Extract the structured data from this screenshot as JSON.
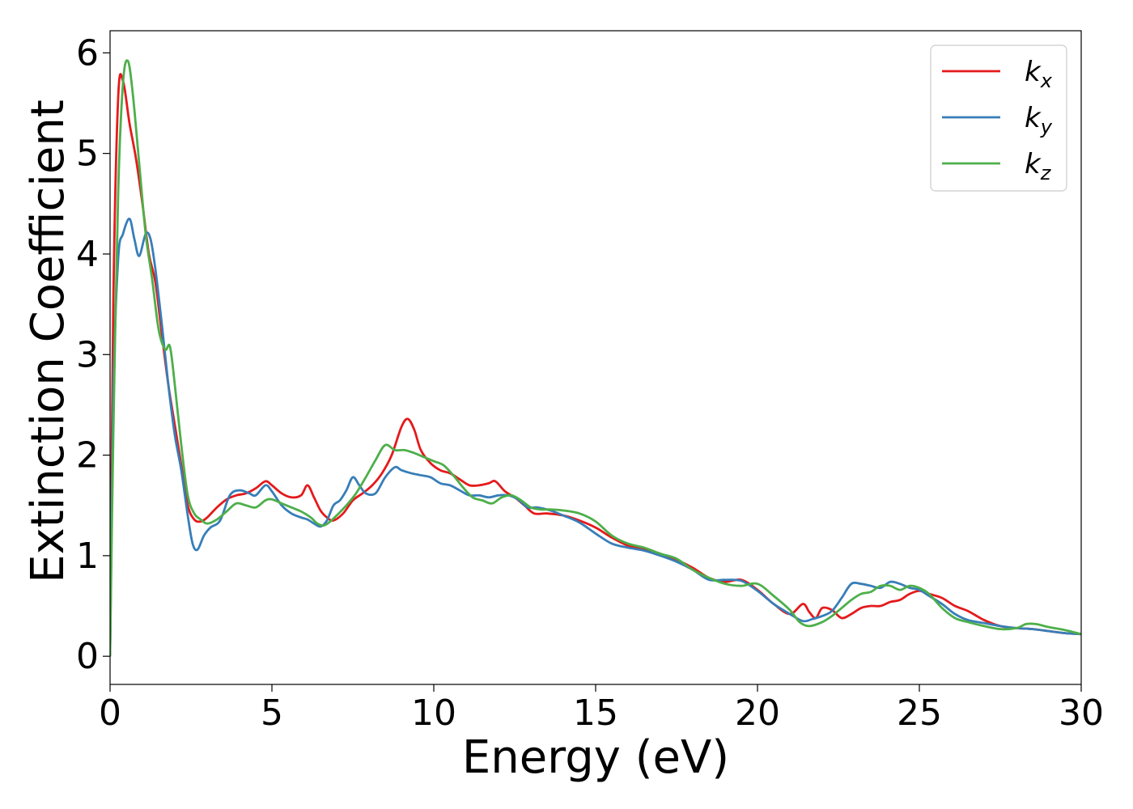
{
  "chart_data": {
    "type": "line",
    "title": "",
    "xlabel": "Energy (eV)",
    "ylabel": "Extinction Coefficient",
    "xlim": [
      0,
      30
    ],
    "ylim": [
      -0.28,
      6.22
    ],
    "xticks": [
      0,
      5,
      10,
      15,
      20,
      25,
      30
    ],
    "yticks": [
      0,
      1,
      2,
      3,
      4,
      5,
      6
    ],
    "grid": false,
    "legend_position": "top-right",
    "series": [
      {
        "name": "k",
        "subscript": "x",
        "color": "#e41a1c",
        "x": [
          0,
          0.1,
          0.25,
          0.4,
          0.6,
          0.8,
          1.0,
          1.2,
          1.4,
          1.6,
          1.8,
          2.0,
          2.2,
          2.4,
          2.6,
          2.8,
          3.0,
          3.3,
          3.6,
          3.9,
          4.2,
          4.5,
          4.8,
          5.0,
          5.3,
          5.6,
          5.9,
          6.1,
          6.3,
          6.5,
          6.7,
          6.9,
          7.2,
          7.5,
          7.8,
          8.1,
          8.4,
          8.7,
          9.0,
          9.2,
          9.4,
          9.6,
          9.9,
          10.2,
          10.5,
          10.8,
          11.1,
          11.4,
          11.7,
          11.9,
          12.2,
          12.5,
          12.8,
          13.1,
          13.5,
          14.0,
          14.5,
          15.0,
          15.5,
          16.0,
          16.5,
          17.0,
          17.5,
          18.0,
          18.5,
          19.0,
          19.5,
          20.0,
          20.5,
          21.0,
          21.4,
          21.6,
          21.8,
          22.0,
          22.3,
          22.6,
          22.9,
          23.2,
          23.5,
          23.8,
          24.1,
          24.4,
          24.7,
          25.0,
          25.3,
          25.7,
          26.1,
          26.5,
          27.0,
          27.5,
          28.0,
          28.5,
          29.0,
          29.5,
          30.0
        ],
        "y": [
          0.0,
          3.5,
          5.55,
          5.72,
          5.3,
          4.95,
          4.5,
          4.0,
          3.72,
          3.2,
          2.7,
          2.3,
          1.9,
          1.5,
          1.36,
          1.34,
          1.38,
          1.48,
          1.56,
          1.6,
          1.62,
          1.67,
          1.74,
          1.7,
          1.62,
          1.58,
          1.6,
          1.7,
          1.58,
          1.45,
          1.38,
          1.35,
          1.42,
          1.55,
          1.62,
          1.7,
          1.82,
          2.0,
          2.28,
          2.36,
          2.25,
          2.05,
          1.92,
          1.85,
          1.82,
          1.76,
          1.7,
          1.7,
          1.72,
          1.74,
          1.64,
          1.58,
          1.5,
          1.42,
          1.42,
          1.4,
          1.35,
          1.28,
          1.18,
          1.1,
          1.06,
          1.02,
          0.96,
          0.88,
          0.78,
          0.74,
          0.76,
          0.66,
          0.52,
          0.42,
          0.52,
          0.44,
          0.38,
          0.48,
          0.46,
          0.38,
          0.42,
          0.48,
          0.5,
          0.5,
          0.54,
          0.56,
          0.62,
          0.65,
          0.62,
          0.58,
          0.5,
          0.45,
          0.36,
          0.3,
          0.28,
          0.27,
          0.25,
          0.23,
          0.22
        ]
      },
      {
        "name": "k",
        "subscript": "y",
        "color": "#377eb8",
        "x": [
          0,
          0.1,
          0.25,
          0.4,
          0.6,
          0.75,
          0.9,
          1.1,
          1.25,
          1.4,
          1.6,
          1.8,
          2.0,
          2.2,
          2.4,
          2.55,
          2.7,
          2.9,
          3.1,
          3.4,
          3.7,
          4.0,
          4.3,
          4.5,
          4.8,
          5.0,
          5.3,
          5.6,
          5.9,
          6.1,
          6.3,
          6.5,
          6.7,
          6.9,
          7.1,
          7.3,
          7.5,
          7.7,
          7.9,
          8.2,
          8.5,
          8.8,
          9.0,
          9.3,
          9.6,
          9.9,
          10.2,
          10.5,
          10.8,
          11.1,
          11.4,
          11.7,
          12.0,
          12.3,
          12.6,
          12.9,
          13.2,
          13.6,
          14.0,
          14.5,
          15.0,
          15.5,
          16.0,
          16.5,
          17.0,
          17.5,
          18.0,
          18.5,
          19.0,
          19.5,
          20.0,
          20.5,
          21.0,
          21.4,
          21.7,
          22.0,
          22.3,
          22.6,
          22.9,
          23.2,
          23.5,
          23.8,
          24.1,
          24.4,
          24.7,
          25.0,
          25.3,
          25.7,
          26.1,
          26.5,
          27.0,
          27.5,
          28.0,
          28.5,
          29.0,
          29.5,
          30.0
        ],
        "y": [
          0.0,
          2.6,
          3.95,
          4.2,
          4.35,
          4.15,
          3.98,
          4.2,
          4.15,
          3.85,
          3.3,
          2.7,
          2.2,
          1.85,
          1.4,
          1.12,
          1.06,
          1.2,
          1.28,
          1.35,
          1.6,
          1.65,
          1.62,
          1.6,
          1.7,
          1.64,
          1.5,
          1.42,
          1.38,
          1.36,
          1.32,
          1.29,
          1.35,
          1.5,
          1.55,
          1.65,
          1.78,
          1.7,
          1.62,
          1.62,
          1.78,
          1.88,
          1.85,
          1.82,
          1.8,
          1.78,
          1.72,
          1.7,
          1.65,
          1.6,
          1.6,
          1.58,
          1.6,
          1.6,
          1.56,
          1.48,
          1.48,
          1.45,
          1.4,
          1.33,
          1.22,
          1.12,
          1.08,
          1.05,
          1.0,
          0.94,
          0.86,
          0.76,
          0.76,
          0.75,
          0.65,
          0.52,
          0.42,
          0.35,
          0.37,
          0.4,
          0.45,
          0.58,
          0.72,
          0.72,
          0.7,
          0.68,
          0.74,
          0.72,
          0.68,
          0.66,
          0.6,
          0.52,
          0.42,
          0.36,
          0.33,
          0.3,
          0.28,
          0.27,
          0.25,
          0.23,
          0.22
        ]
      },
      {
        "name": "k",
        "subscript": "z",
        "color": "#4daf4a",
        "x": [
          0,
          0.1,
          0.25,
          0.4,
          0.55,
          0.7,
          0.9,
          1.1,
          1.3,
          1.5,
          1.7,
          1.85,
          2.0,
          2.2,
          2.4,
          2.6,
          2.8,
          3.0,
          3.3,
          3.6,
          3.9,
          4.2,
          4.5,
          4.8,
          5.0,
          5.3,
          5.6,
          5.9,
          6.2,
          6.4,
          6.6,
          6.8,
          7.0,
          7.3,
          7.6,
          7.9,
          8.2,
          8.5,
          8.8,
          9.1,
          9.4,
          9.7,
          10.0,
          10.3,
          10.6,
          10.9,
          11.2,
          11.5,
          11.8,
          12.1,
          12.4,
          12.7,
          13.0,
          13.3,
          13.6,
          14.0,
          14.5,
          15.0,
          15.5,
          16.0,
          16.5,
          17.0,
          17.5,
          18.0,
          18.5,
          19.0,
          19.5,
          20.0,
          20.5,
          21.0,
          21.3,
          21.6,
          22.0,
          22.3,
          22.6,
          22.9,
          23.2,
          23.5,
          23.8,
          24.1,
          24.4,
          24.7,
          25.0,
          25.3,
          25.7,
          26.1,
          26.5,
          27.0,
          27.5,
          28.0,
          28.3,
          28.6,
          29.0,
          29.5,
          30.0
        ],
        "y": [
          0.0,
          2.2,
          4.6,
          5.7,
          5.92,
          5.6,
          4.9,
          4.2,
          3.75,
          3.25,
          3.05,
          3.08,
          2.7,
          2.1,
          1.6,
          1.42,
          1.36,
          1.32,
          1.36,
          1.44,
          1.52,
          1.5,
          1.48,
          1.55,
          1.56,
          1.52,
          1.48,
          1.44,
          1.38,
          1.32,
          1.3,
          1.34,
          1.4,
          1.5,
          1.62,
          1.78,
          1.95,
          2.1,
          2.05,
          2.05,
          2.02,
          1.98,
          1.94,
          1.9,
          1.8,
          1.68,
          1.58,
          1.55,
          1.52,
          1.58,
          1.6,
          1.55,
          1.48,
          1.46,
          1.46,
          1.45,
          1.42,
          1.34,
          1.2,
          1.12,
          1.08,
          1.02,
          0.97,
          0.86,
          0.78,
          0.72,
          0.7,
          0.72,
          0.6,
          0.46,
          0.34,
          0.3,
          0.34,
          0.4,
          0.48,
          0.56,
          0.62,
          0.64,
          0.7,
          0.7,
          0.66,
          0.7,
          0.68,
          0.62,
          0.48,
          0.38,
          0.34,
          0.3,
          0.27,
          0.28,
          0.32,
          0.32,
          0.29,
          0.26,
          0.22
        ]
      }
    ]
  }
}
